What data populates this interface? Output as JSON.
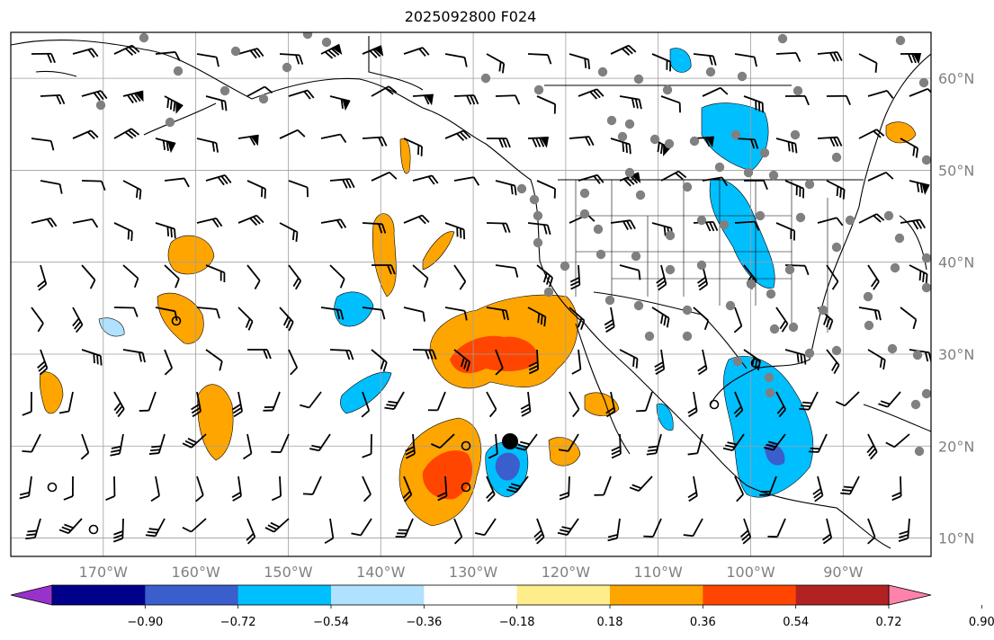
{
  "map": {
    "title": "2025092800 F024",
    "lon_ticks": [
      "170°W",
      "160°W",
      "150°W",
      "140°W",
      "130°W",
      "120°W",
      "110°W",
      "100°W",
      "90°W"
    ],
    "lat_ticks": [
      "60°N",
      "50°N",
      "40°N",
      "30°N",
      "20°N",
      "10°N"
    ],
    "extent": {
      "lon_min": -180,
      "lon_max": -80.5,
      "lat_min": 8,
      "lat_max": 65
    },
    "grid": "on"
  },
  "colorbar": {
    "colors": [
      "#9932CC",
      "#00008B",
      "#3A5FCD",
      "#00BFFF",
      "#B0E2FF",
      "#FFFFFF",
      "#FFEC8B",
      "#FFA500",
      "#FF4500",
      "#B22222",
      "#FF82AB"
    ],
    "tick_labels": [
      "−0.90",
      "−0.72",
      "−0.54",
      "−0.36",
      "−0.18",
      "0.18",
      "0.36",
      "0.54",
      "0.72",
      "0.90"
    ],
    "extend": "both"
  },
  "stations": {
    "gray_dot_color": "#808080"
  }
}
